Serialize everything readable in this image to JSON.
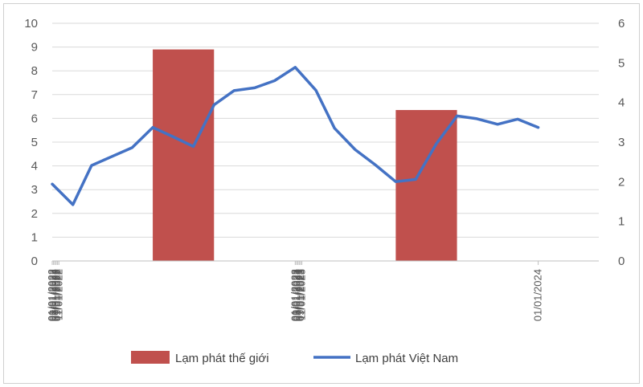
{
  "chart_data": {
    "type": "bar+line",
    "x_tick_labels": [
      "01/01/2022",
      "03/01/2022",
      "05/01/2022",
      "07/01/2022",
      "09/01/2022",
      "11/01/2022",
      "01/01/2023",
      "03/01/2023",
      "05/01/2023",
      "07/01/2023",
      "09/01/2023",
      "11/01/2023",
      "01/01/2024"
    ],
    "x_range": [
      "01/01/2022",
      "01/04/2024"
    ],
    "y_left": {
      "range": [
        0,
        10
      ],
      "ticks": [
        "0",
        "1",
        "2",
        "3",
        "4",
        "5",
        "6",
        "7",
        "8",
        "9",
        "10"
      ]
    },
    "y_right": {
      "range": [
        0,
        6
      ],
      "ticks": [
        "0",
        "1",
        "2",
        "3",
        "4",
        "5",
        "6"
      ]
    },
    "grid": true,
    "legend_position": "bottom",
    "series": [
      {
        "name": "Lạm phát thế giới",
        "kind": "bar",
        "axis": "left",
        "color": "#c0504d",
        "bars": [
          {
            "start": "01/06/2022",
            "end": "01/09/2022",
            "value": 8.9
          },
          {
            "start": "01/06/2023",
            "end": "01/09/2023",
            "value": 6.35
          }
        ]
      },
      {
        "name": "Lạm phát Việt Nam",
        "kind": "line",
        "axis": "right",
        "color": "#4472c4",
        "points": [
          [
            "01/01/2022",
            1.94
          ],
          [
            "01/02/2022",
            1.42
          ],
          [
            "01/03/2022",
            2.41
          ],
          [
            "01/04/2022",
            2.64
          ],
          [
            "01/05/2022",
            2.86
          ],
          [
            "01/06/2022",
            3.37
          ],
          [
            "01/07/2022",
            3.14
          ],
          [
            "01/08/2022",
            2.89
          ],
          [
            "01/09/2022",
            3.94
          ],
          [
            "01/10/2022",
            4.3
          ],
          [
            "01/11/2022",
            4.37
          ],
          [
            "01/12/2022",
            4.55
          ],
          [
            "01/01/2023",
            4.89
          ],
          [
            "01/02/2023",
            4.31
          ],
          [
            "01/03/2023",
            3.35
          ],
          [
            "01/04/2023",
            2.81
          ],
          [
            "01/05/2023",
            2.43
          ],
          [
            "01/06/2023",
            2.0
          ],
          [
            "01/07/2023",
            2.06
          ],
          [
            "01/08/2023",
            2.96
          ],
          [
            "01/09/2023",
            3.66
          ],
          [
            "01/10/2023",
            3.59
          ],
          [
            "01/11/2023",
            3.45
          ],
          [
            "01/12/2023",
            3.58
          ],
          [
            "01/01/2024",
            3.37
          ]
        ]
      }
    ]
  }
}
